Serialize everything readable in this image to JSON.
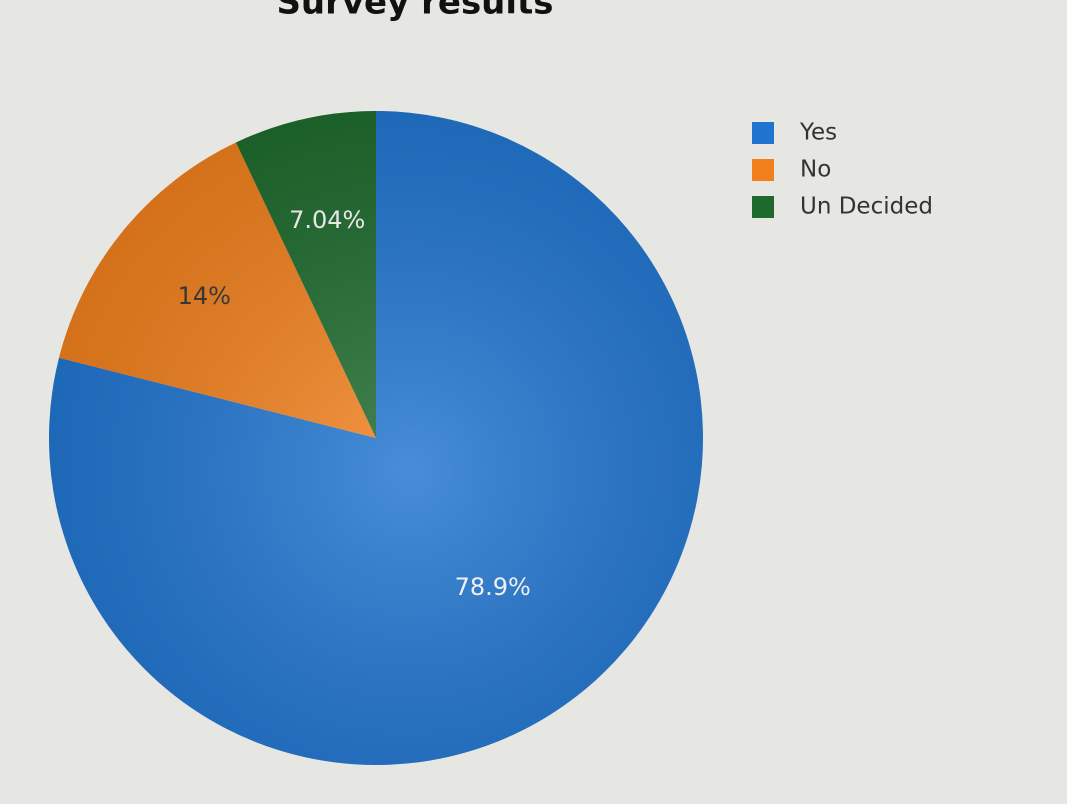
{
  "chart_data": {
    "type": "pie",
    "title": "Survey results",
    "categories": [
      "Yes",
      "No",
      "Un Decided"
    ],
    "values": [
      78.9,
      14,
      7.04
    ],
    "value_labels": [
      "78.9%",
      "14%",
      "7.04%"
    ],
    "colors": [
      "#1f74cf",
      "#f07f1c",
      "#1d6a2c"
    ],
    "legend": "right"
  }
}
